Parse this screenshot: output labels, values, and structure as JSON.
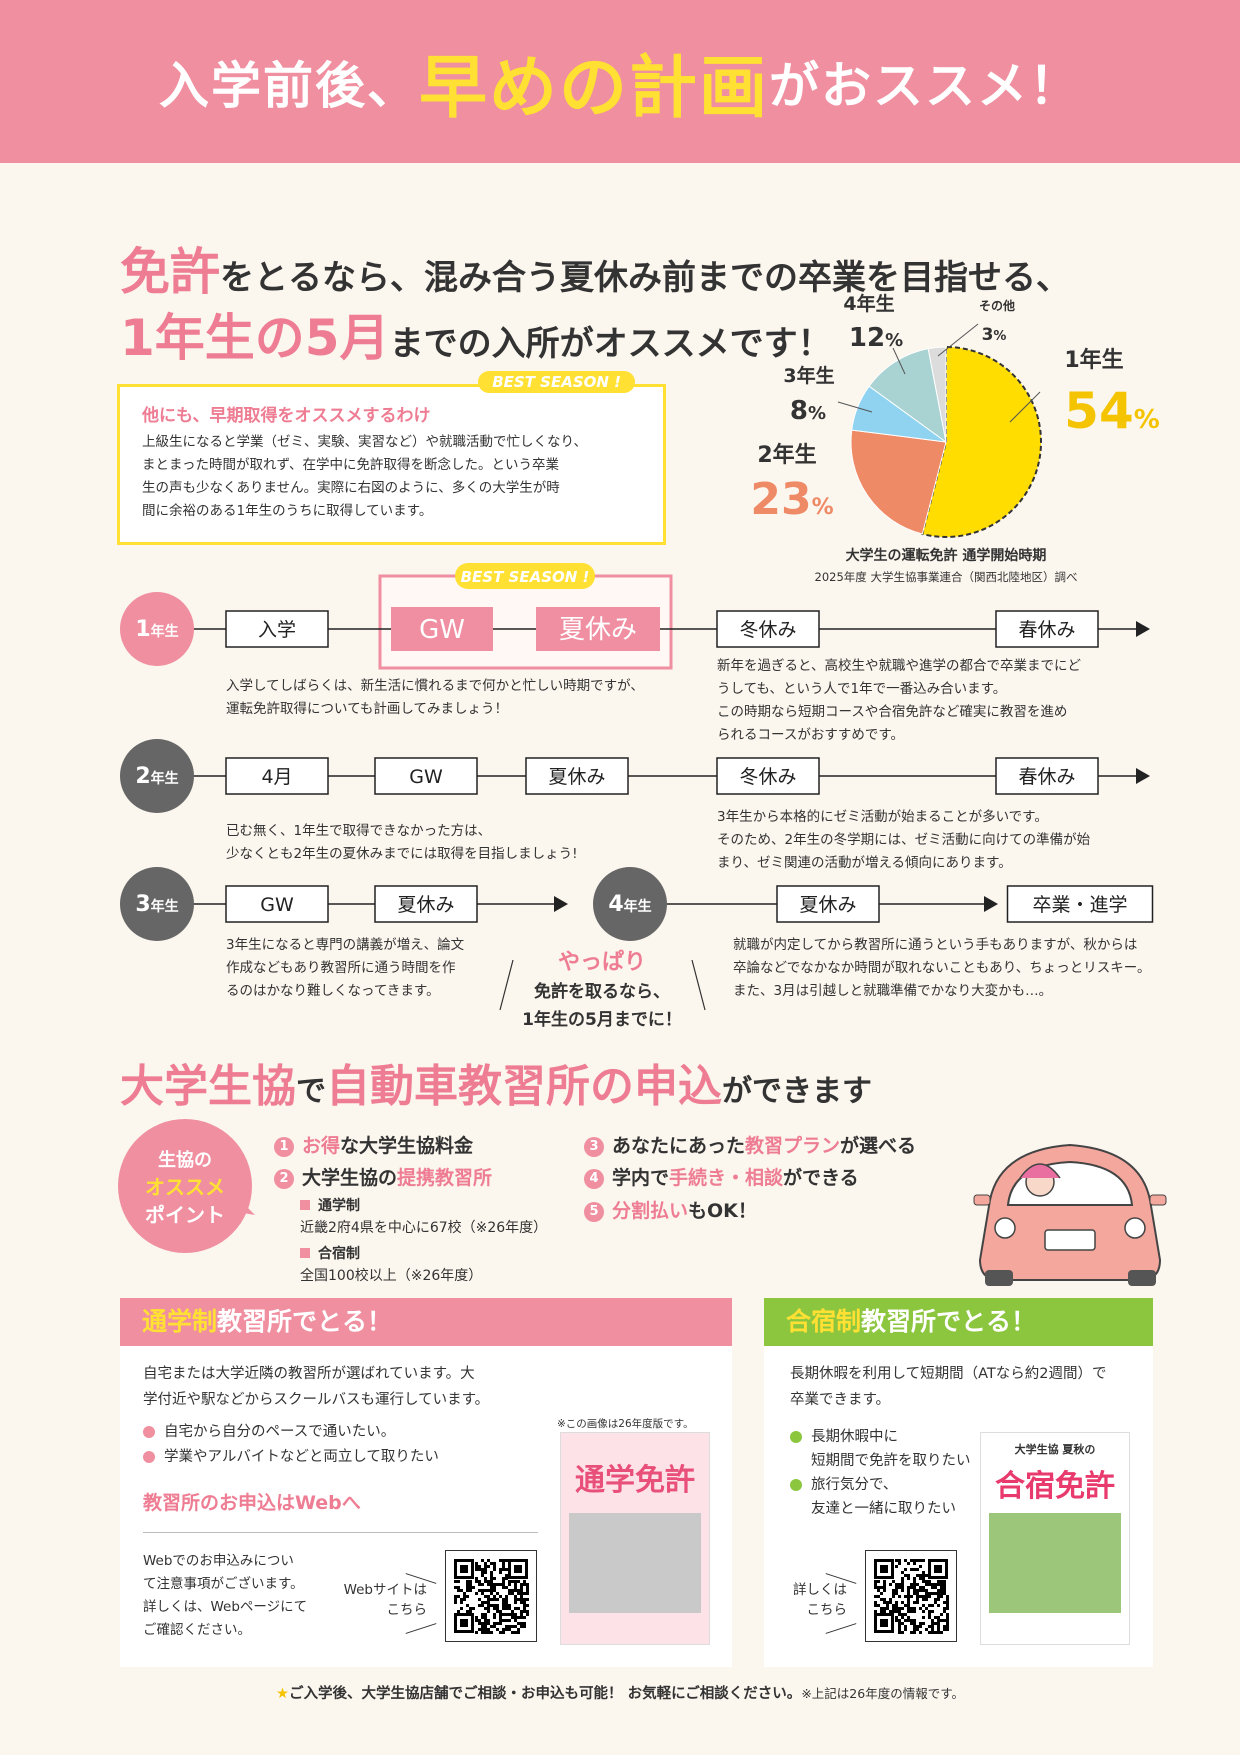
{
  "header": {
    "title_parts": [
      "入学前後、",
      "早めの計画",
      "がおススメ！"
    ]
  },
  "intro": {
    "line1": [
      "免許",
      "をとるなら、混み合う夏休み前までの卒業を目指せる、"
    ],
    "line2": [
      "1年生の5月",
      "までの入所がオススメです！"
    ]
  },
  "reasons": {
    "tag": "BEST SEASON !",
    "title": "他にも、早期取得をオススメするわけ",
    "lines": [
      "上級生になると学業（ゼミ、実験、実習など）や就職活動で忙しくなり、",
      "まとまった時間が取れず、在学中に免許取得を断念した。という卒業",
      "生の声も少なくありません。実際に右図のように、多くの大学生が時",
      "間に余裕のある1年生のうちに取得しています。"
    ]
  },
  "chart_data": {
    "type": "pie",
    "title": "大学生の運転免許 通学開始時期",
    "source": "2025年度 大学生協事業連合（関西北陸地区）調べ",
    "categories": [
      "1年生",
      "2年生",
      "3年生",
      "4年生",
      "その他"
    ],
    "values": [
      54,
      23,
      8,
      12,
      3
    ],
    "value_labels": [
      "54%",
      "23%",
      "8%",
      "12%",
      "3%"
    ],
    "colors": [
      "#ffdd00",
      "#ef8a66",
      "#8fd3f0",
      "#a9d2d2",
      "#dcdcdc"
    ]
  },
  "timeline": {
    "tag": "BEST SEASON !",
    "rows": [
      {
        "year": "1年生",
        "items": [
          "入学",
          "GW",
          "夏休み",
          "冬休み",
          "春休み"
        ]
      },
      {
        "year": "2年生",
        "items": [
          "4月",
          "GW",
          "夏休み",
          "冬休み",
          "春休み"
        ]
      },
      {
        "year": "3年生",
        "items": [
          "GW",
          "夏休み"
        ]
      },
      {
        "year": "4年生",
        "items": [
          "夏休み",
          "卒業・進学"
        ]
      }
    ],
    "notes": [
      [
        "入学してしばらくは、新生活に慣れるまで何かと忙しい時期ですが、",
        "運転免許取得についても計画してみましょう！"
      ],
      [
        "新年を過ぎると、高校生や就職や進学の都合で卒業までにど",
        "うしても、という人で1年で一番込み合います。",
        "この時期なら短期コースや合宿免許など確実に教習を進め",
        "られるコースがおすすめです。"
      ],
      [
        "已む無く、1年生で取得できなかった方は、",
        "少なくとも2年生の夏休みまでには取得を目指しましょう!"
      ],
      [
        "3年生から本格的にゼミ活動が始まることが多いです。",
        "そのため、2年生の冬学期には、ゼミ活動に向けての準備が始",
        "まり、ゼミ関連の活動が増える傾向にあります。"
      ],
      [
        "3年生になると専門の講義が増え、論文",
        "作成などもあり教習所に通う時間を作",
        "るのはかなり難しくなってきます。"
      ],
      [
        "就職が内定してから教習所に通うという手もありますが、秋からは",
        "卒論などでなかなか時間が取れないこともあり、ちょっとリスキー。",
        "また、3月は引越しと就職準備でかなり大変かも…。"
      ]
    ]
  },
  "conclusion": {
    "em": "やっぱり",
    "lines": [
      "免許を取るなら、",
      "1年生の5月までに！"
    ]
  },
  "section": {
    "title_parts": [
      "大学生協",
      "で",
      "自動車教習所の申込",
      "ができます"
    ]
  },
  "points": {
    "badge": [
      "生協の",
      "オススメ",
      "ポイント"
    ],
    "items": [
      {
        "num": "1",
        "em": "お得",
        "post": "な大学生協料金"
      },
      {
        "num": "2",
        "pre": "大学生協の",
        "em": "提携教習所",
        "sub": [
          {
            "label": "通学制",
            "text": "近畿2府4県を中心に67校（※26年度）"
          },
          {
            "label": "合宿制",
            "text": "全国100校以上（※26年度）"
          }
        ]
      },
      {
        "num": "3",
        "pre": "あなたにあった",
        "em": "教習プラン",
        "post": "が選べる"
      },
      {
        "num": "4",
        "pre": "学内で",
        "em": "手続き・相談",
        "post": "ができる"
      },
      {
        "num": "5",
        "em": "分割払い",
        "post": "もOK！"
      }
    ]
  },
  "panels": [
    {
      "title_em": "通学制",
      "title": "教習所でとる！",
      "body": [
        "自宅または大学近隣の教習所が選ばれています。大",
        "学付近や駅などからスクールバスも運行しています。"
      ],
      "bullets": [
        [
          "自宅から自分のペースで通いたい。"
        ],
        [
          "学業やアルバイトなどと両立して取りたい"
        ]
      ],
      "web_heading": "教習所のお申込はWebへ",
      "web_note": [
        "Webでのお申込みについ",
        "て注意事項がございます。",
        "詳しくは、Webページにて",
        "ご確認ください。"
      ],
      "qr_label": [
        "Webサイトは",
        "こちら"
      ],
      "image_note": "※この画像は26年度版です。",
      "brochure": [
        "通学免許"
      ]
    },
    {
      "title_em": "合宿制",
      "title": "教習所でとる！",
      "body": [
        "長期休暇を利用して短期間（ATなら約2週間）で",
        "卒業できます。"
      ],
      "bullets": [
        [
          "長期休暇中に",
          "短期間で免許を取りたい"
        ],
        [
          "旅行気分で、",
          "友達と一緒に取りたい"
        ]
      ],
      "qr_label": [
        "詳しくは",
        "こちら"
      ],
      "brochure": [
        "大学生協 夏秋の",
        "合宿免許"
      ]
    }
  ],
  "footer": {
    "star": "★",
    "main": "ご入学後、大学生協店舗でご相談・お申込も可能！ お気軽にご相談ください。",
    "note": "※上記は26年度の情報です。"
  }
}
